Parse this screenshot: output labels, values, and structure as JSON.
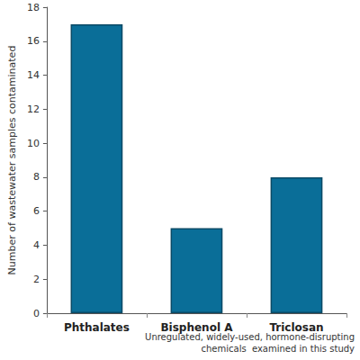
{
  "chart_data": {
    "type": "bar",
    "categories": [
      "Phthalates",
      "Bisphenol A",
      "Triclosan"
    ],
    "values": [
      17,
      5,
      8
    ],
    "color": "#0a6e98",
    "y_label": "Number of wastewater samples contaminated",
    "x_label": "Unregulated, widely-used, hormone-disrupting\nchemicals  examined in this study",
    "ylim": [
      0,
      18
    ],
    "yticks": [
      0,
      2,
      4,
      6,
      8,
      10,
      12,
      14,
      16,
      18
    ],
    "grid": false
  }
}
